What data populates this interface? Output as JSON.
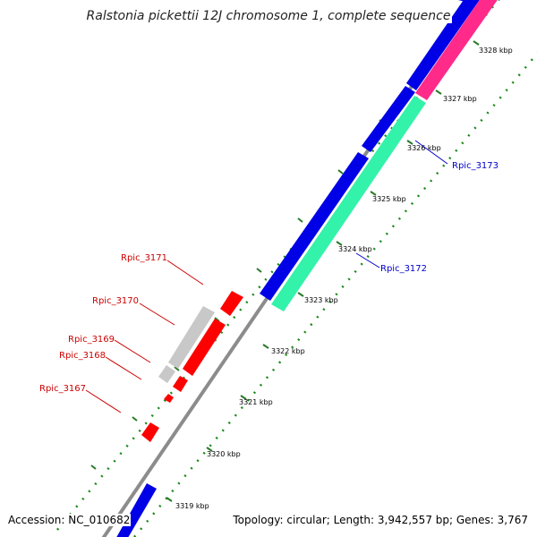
{
  "title": "Ralstonia pickettii 12J chromosome 1, complete sequence",
  "footer": {
    "accession": "Accession: NC_010682",
    "summary": "Topology: circular; Length: 3,942,557 bp; Genes: 3,767"
  },
  "colors": {
    "backbone": "#8c8c8c",
    "tick": "#1a8a1a",
    "forward_gene": "#0000e6",
    "rrna": "#ff2a8a",
    "trna": "#33f2aa",
    "reverse_gene": "#ff0000",
    "pseudo_gene": "#c8c8c8",
    "label_forward": "#0000cc",
    "label_reverse": "#cc0000"
  },
  "kbp_labels": [
    "3319 kbp",
    "3320 kbp",
    "3321 kbp",
    "3322 kbp",
    "3323 kbp",
    "3324 kbp",
    "3325 kbp",
    "3326 kbp",
    "3327 kbp",
    "3328 kbp"
  ],
  "genes": [
    {
      "name": "Rpic_3167",
      "strand": "reverse"
    },
    {
      "name": "Rpic_3168",
      "strand": "reverse"
    },
    {
      "name": "Rpic_3169",
      "strand": "reverse"
    },
    {
      "name": "Rpic_3170",
      "strand": "reverse"
    },
    {
      "name": "Rpic_3171",
      "strand": "reverse"
    },
    {
      "name": "Rpic_3172",
      "strand": "forward"
    },
    {
      "name": "Rpic_3173",
      "strand": "forward"
    }
  ]
}
